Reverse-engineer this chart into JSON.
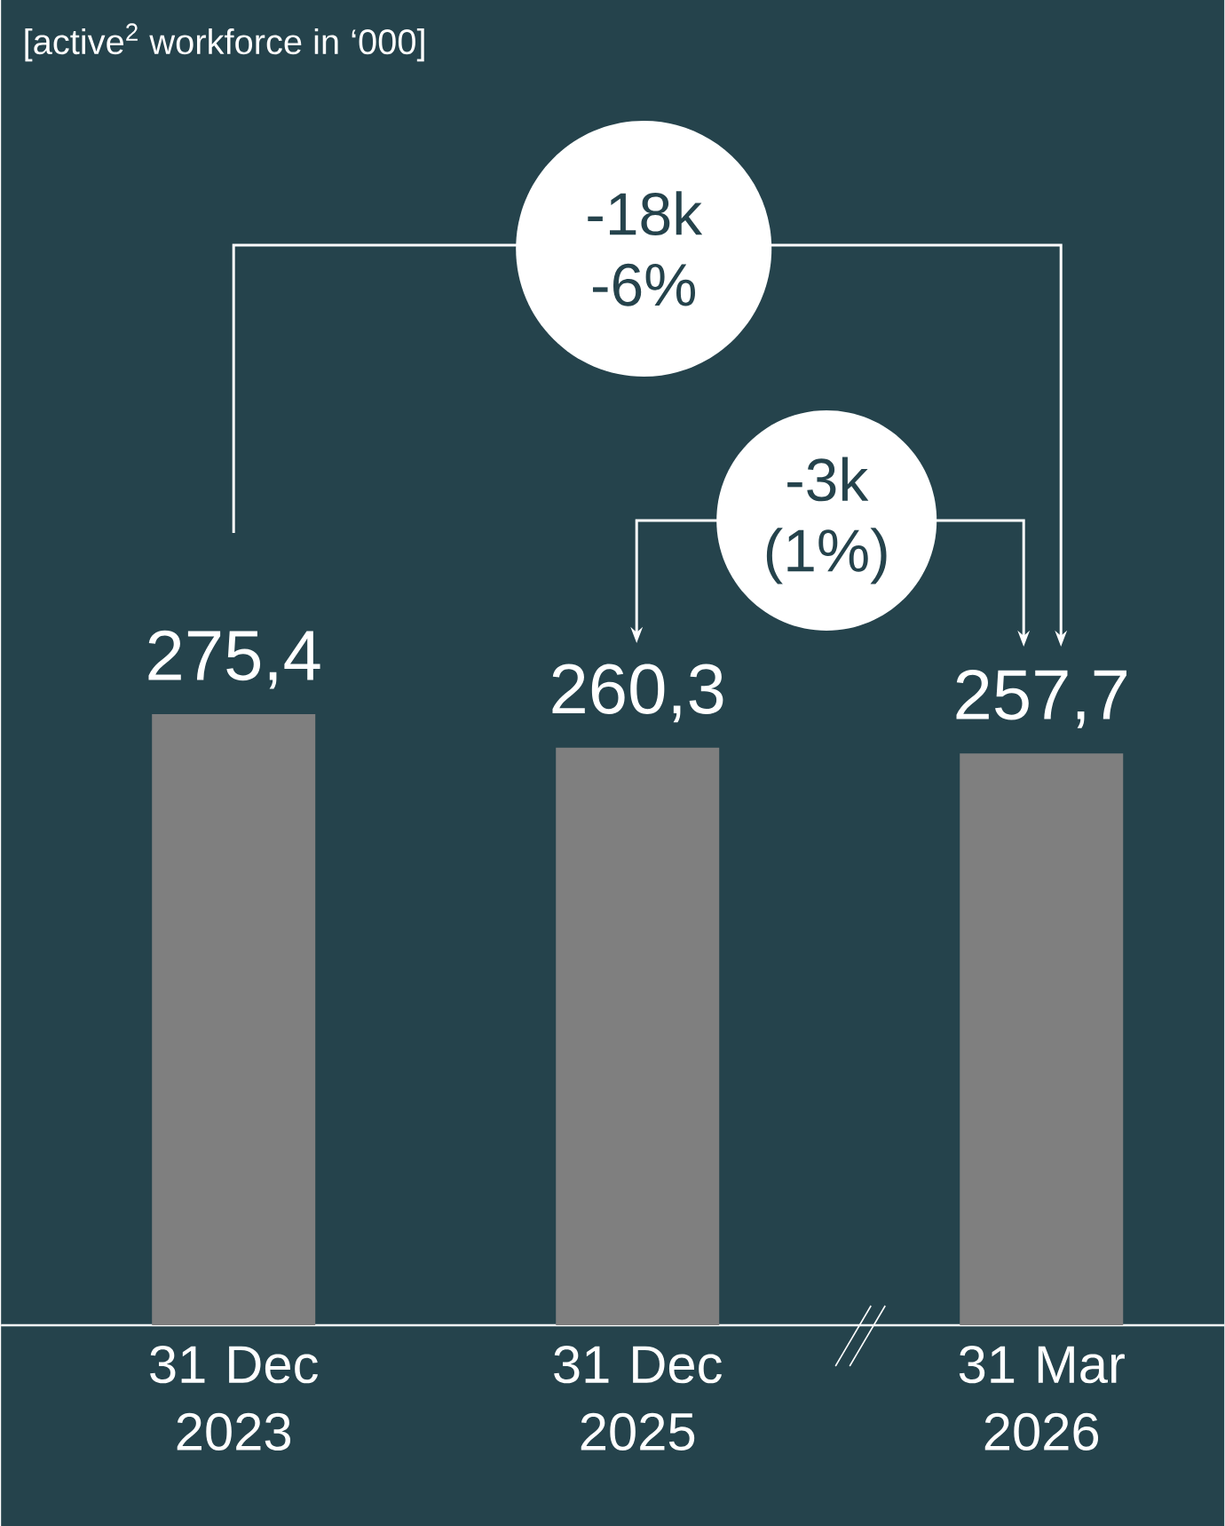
{
  "chart_data": {
    "type": "bar",
    "title": "[active$^{2}$ workforce in ‘000]",
    "categories": [
      "31 Dec 2023",
      "31 Dec 2025",
      "31 Mar 2026"
    ],
    "values": [
      275.4,
      260.3,
      257.7
    ],
    "value_labels": [
      "275,4",
      "260,3",
      "257,7"
    ],
    "color": "#7f7f7f",
    "annotations": [
      "-18k -6%",
      "-3k (1%)"
    ]
  }
}
